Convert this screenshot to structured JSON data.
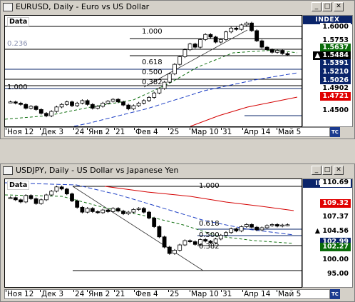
{
  "chart_data": [
    {
      "type": "candlestick",
      "title": "EURUSD, Daily - Euro vs US Dollar",
      "data_label": "Data",
      "x_ticks": [
        "Ноя 12",
        "Дек 3",
        "24",
        "Янв 2",
        "21",
        "Фев 4",
        "25",
        "Мар 10",
        "31",
        "Апр 14",
        "Май 5"
      ],
      "y_ticks": [
        "1.6000",
        "1.5753",
        "1.5637",
        "1.5484",
        "1.5391",
        "1.5210",
        "1.5026",
        "1.4902",
        "1.4721",
        "1.4500"
      ],
      "last_price": "1.5484",
      "last_price_text": "▲ 1.5484",
      "index_label": "INDEX",
      "fibonacci_labels": [
        "1.000",
        "0.618",
        "0.500",
        "0.382",
        "0.236",
        "1.000"
      ],
      "ylim": [
        1.44,
        1.605
      ],
      "series": [
        {
          "name": "price",
          "values": [
            1.474,
            1.472,
            1.47,
            1.464,
            1.467,
            1.462,
            1.456,
            1.452,
            1.459,
            1.466,
            1.47,
            1.474,
            1.468,
            1.472,
            1.476,
            1.47,
            1.464,
            1.467,
            1.472,
            1.475,
            1.478,
            1.474,
            1.469,
            1.463,
            1.468,
            1.472,
            1.476,
            1.481,
            1.488,
            1.495,
            1.505,
            1.518,
            1.533,
            1.545,
            1.556,
            1.565,
            1.56,
            1.572,
            1.58,
            1.576,
            1.568,
            1.572,
            1.584,
            1.59,
            1.588,
            1.595,
            1.598,
            1.586,
            1.57,
            1.56,
            1.556,
            1.552,
            1.555,
            1.55,
            1.548
          ]
        }
      ]
    },
    {
      "type": "candlestick",
      "title": "USDJPY, Daily - US Dollar vs Japanese Yen",
      "data_label": "Data",
      "x_ticks": [
        "Ноя 12",
        "Дек 3",
        "24",
        "Янв 2",
        "21",
        "Фев 4",
        "25",
        "Мар 10",
        "31",
        "Апр 14",
        "Май 5"
      ],
      "y_ticks": [
        "110.69",
        "109.32",
        "107.37",
        "104.56",
        "102.99",
        "102.27",
        "100.00",
        "95.00"
      ],
      "last_price": "104.56",
      "last_price_text": "▲ 104.56",
      "index_label": "INDEX",
      "fibonacci_labels": [
        "1.000",
        "0.618",
        "0.500",
        "0.382"
      ],
      "ylim": [
        93.5,
        112.5
      ],
      "series": [
        {
          "name": "price",
          "values": [
            109.6,
            109.2,
            108.8,
            110.0,
            109.4,
            108.5,
            109.2,
            110.1,
            110.8,
            111.6,
            111.2,
            110.3,
            109.0,
            107.8,
            106.9,
            107.6,
            107.0,
            106.8,
            107.3,
            107.0,
            107.6,
            107.1,
            106.6,
            106.9,
            107.4,
            107.6,
            106.9,
            105.8,
            104.2,
            102.3,
            100.4,
            99.2,
            99.8,
            100.8,
            101.6,
            101.4,
            100.9,
            101.8,
            101.5,
            101.2,
            101.9,
            102.6,
            103.1,
            103.8,
            103.4,
            104.2,
            104.6,
            104.1,
            103.6,
            104.0,
            104.4,
            104.6,
            104.3,
            104.5,
            104.56
          ]
        }
      ]
    }
  ],
  "ui": {
    "colors": {
      "title_bar_bg": "#d4d0c8",
      "index_tag": "#0a246a",
      "up_green": "#0a6b0a",
      "red_tag": "#e00000",
      "black_tag": "#000000",
      "navy_tag": "#0a246a"
    },
    "buttons": {
      "min": "_",
      "max": "□",
      "close": "✕"
    },
    "scroll_icon": "⇄",
    "logo_icon": "logo-icon"
  }
}
